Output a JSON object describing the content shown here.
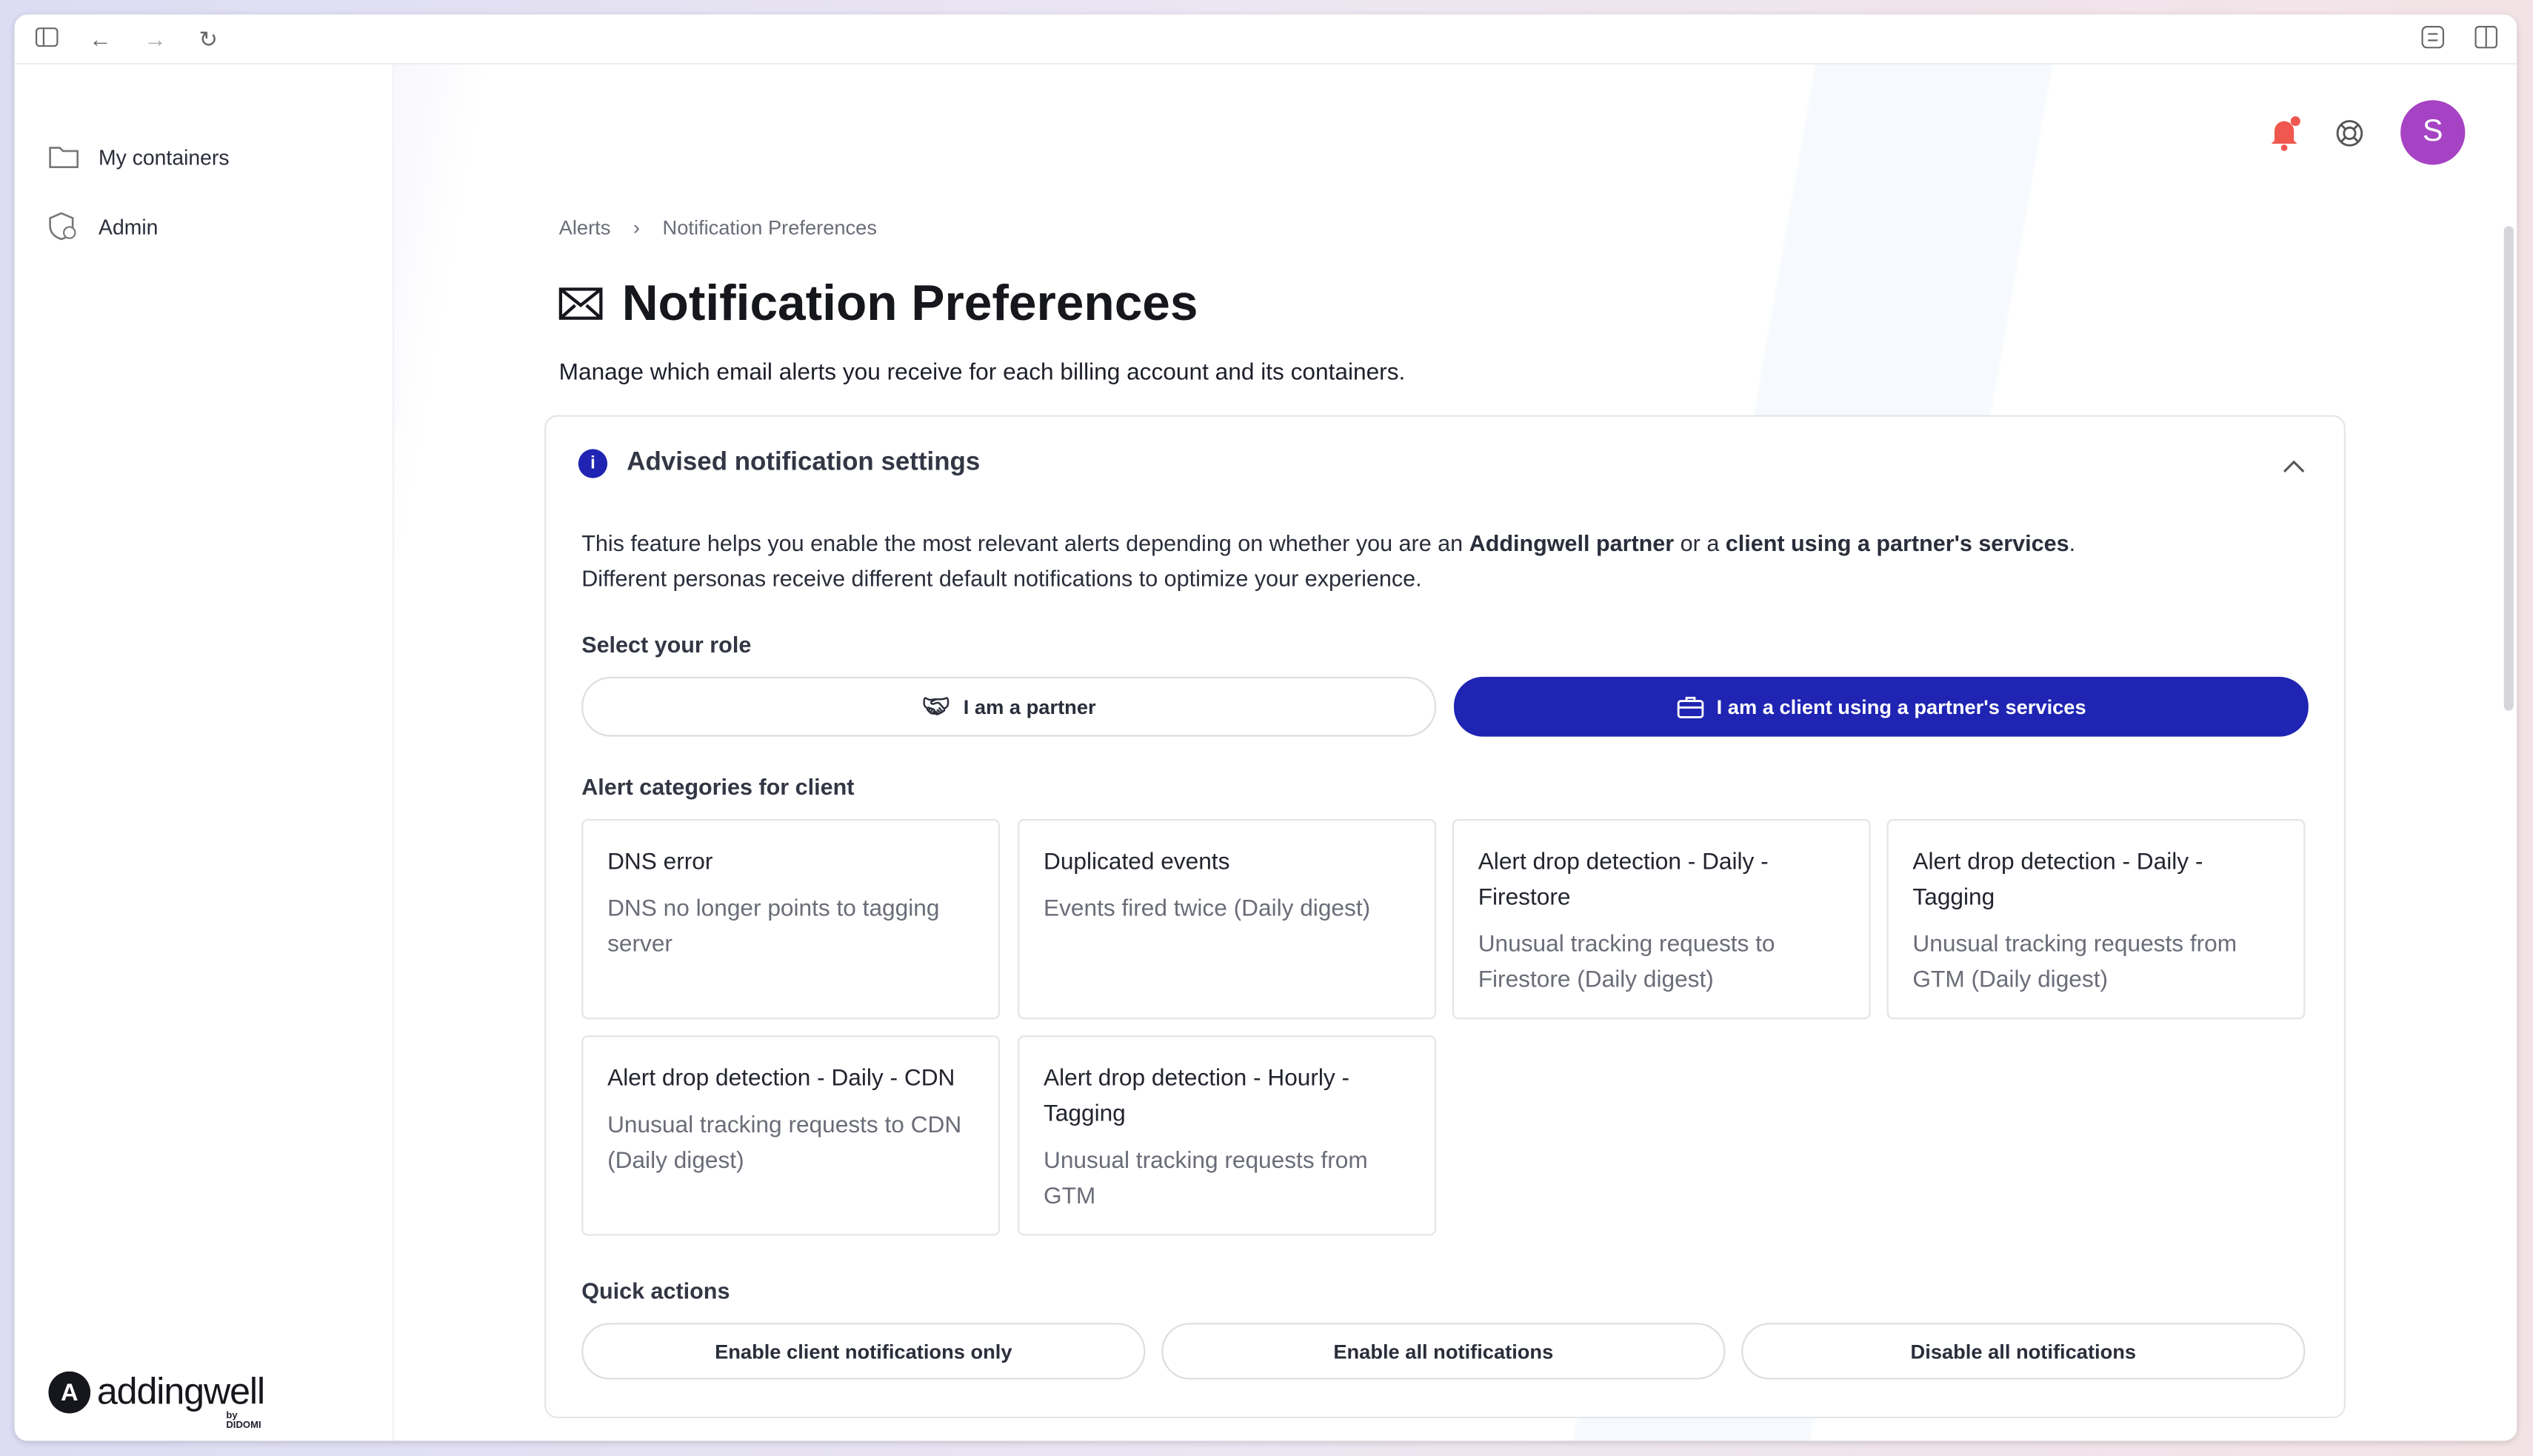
{
  "browser": {
    "icons": [
      "sidebar-toggle-icon",
      "back-icon",
      "forward-icon",
      "reload-icon",
      "extension-icon",
      "split-view-icon"
    ]
  },
  "sidebar": {
    "items": [
      {
        "label": "My containers",
        "icon": "folder-icon"
      },
      {
        "label": "Admin",
        "icon": "admin-shield-icon"
      }
    ],
    "logo": {
      "name": "addingwell",
      "sub": "by DIDOMI"
    }
  },
  "header": {
    "avatar_letter": "S",
    "avatar_color": "#a642c4",
    "notification_dot_color": "#f0574f"
  },
  "breadcrumb": [
    "Alerts",
    "Notification Preferences"
  ],
  "page": {
    "title": "Notification Preferences",
    "subtitle": "Manage which email alerts you receive for each billing account and its containers."
  },
  "advised": {
    "title": "Advised notification settings",
    "desc_1": "This feature helps you enable the most relevant alerts depending on whether you are an ",
    "desc_b1": "Addingwell partner",
    "desc_2": " or a ",
    "desc_b2": "client using a partner's services",
    "desc_3": ".",
    "desc_line2": "Different personas receive different default notifications to optimize your experience.",
    "role_label": "Select your role",
    "roles": [
      {
        "label": "I am a partner",
        "selected": false
      },
      {
        "label": "I am a client using a partner's services",
        "selected": true
      }
    ],
    "accent": "#1f24b3",
    "categories_label": "Alert categories for client",
    "categories": [
      {
        "title": "DNS error",
        "desc": "DNS no longer points to tagging server"
      },
      {
        "title": "Duplicated events",
        "desc": "Events fired twice (Daily digest)"
      },
      {
        "title": "Alert drop detection - Daily - Firestore",
        "desc": "Unusual tracking requests to Firestore (Daily digest)"
      },
      {
        "title": "Alert drop detection - Daily - Tagging",
        "desc": "Unusual tracking requests from GTM (Daily digest)"
      },
      {
        "title": "Alert drop detection - Daily - CDN",
        "desc": "Unusual tracking requests to CDN (Daily digest)"
      },
      {
        "title": "Alert drop detection - Hourly - Tagging",
        "desc": "Unusual tracking requests from GTM"
      }
    ],
    "quick_label": "Quick actions",
    "quick_actions": [
      "Enable client notifications only",
      "Enable all notifications",
      "Disable all notifications"
    ]
  }
}
